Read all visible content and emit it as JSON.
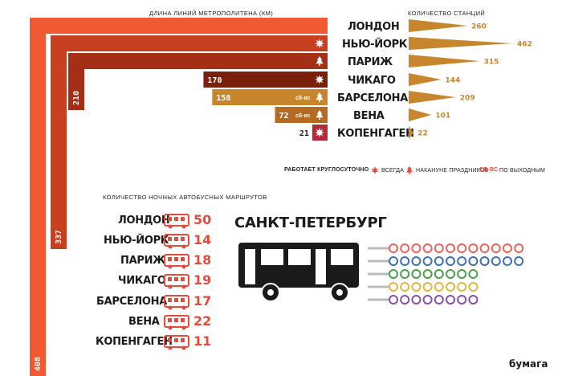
{
  "metro_length_header": "длина линий метрополитена (км)",
  "stations_header": "количество станций",
  "night_bus_header": "количество ночных автобусных маршрутов",
  "spb_title": "САНКТ-ПЕТЕРБУРГ",
  "logo": "бумага",
  "legend": {
    "title": "работает круглосуточно",
    "always": "всегда",
    "holidays": "накануне праздников",
    "weekends_tag": "сб-вс",
    "weekends": "по выходным"
  },
  "colors": {
    "london": "#f05a32",
    "newyork": "#c7401f",
    "paris": "#a52e17",
    "chicago": "#7a1f0b",
    "barcelona": "#c8862c",
    "vienna": "#b56a24",
    "copenhagen": "#b32a3a",
    "stations": "#c8862c",
    "bus": "#e64a3a"
  },
  "chart_data": [
    {
      "type": "bar",
      "title": "длина линий метрополитена (км)",
      "categories": [
        "Лондон",
        "Нью-Йорк",
        "Париж",
        "Чикаго",
        "Барселона",
        "Вена",
        "Копенгаген"
      ],
      "values": [
        408,
        337,
        210,
        170,
        158,
        72,
        21
      ],
      "labels": [
        "408",
        "337",
        "210",
        "170",
        "158",
        "72",
        "21"
      ],
      "round_the_clock": [
        "",
        "всегда",
        "накануне праздников",
        "всегда",
        "по выходным",
        "по выходным",
        "всегда"
      ]
    },
    {
      "type": "bar",
      "title": "количество станций",
      "categories": [
        "Лондон",
        "Нью-Йорк",
        "Париж",
        "Чикаго",
        "Барселона",
        "Вена",
        "Копенгаген"
      ],
      "values": [
        260,
        462,
        315,
        144,
        209,
        101,
        22
      ],
      "labels": [
        "260",
        "462",
        "315",
        "144",
        "209",
        "101",
        "22"
      ]
    },
    {
      "type": "bar",
      "title": "количество ночных автобусных маршрутов",
      "categories": [
        "Лондон",
        "Нью-Йорк",
        "Париж",
        "Чикаго",
        "Барселона",
        "Вена",
        "Копенгаген"
      ],
      "values": [
        50,
        14,
        18,
        19,
        17,
        22,
        11
      ],
      "labels": [
        "50",
        "14",
        "18",
        "19",
        "17",
        "22",
        "11"
      ]
    }
  ],
  "spb_routes": {
    "line_colors": [
      "#e8645a",
      "#3e6fb3",
      "#4aa04a",
      "#e0b83a",
      "#8a4fa0"
    ]
  }
}
